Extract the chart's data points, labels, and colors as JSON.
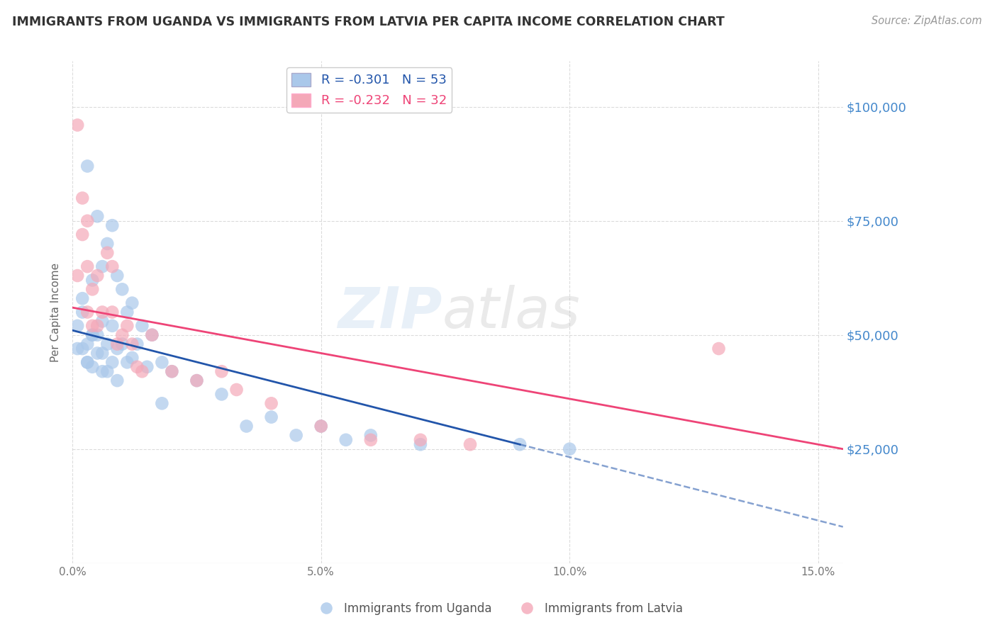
{
  "title": "IMMIGRANTS FROM UGANDA VS IMMIGRANTS FROM LATVIA PER CAPITA INCOME CORRELATION CHART",
  "source": "Source: ZipAtlas.com",
  "ylabel": "Per Capita Income",
  "ytick_labels": [
    "$25,000",
    "$50,000",
    "$75,000",
    "$100,000"
  ],
  "ytick_values": [
    25000,
    50000,
    75000,
    100000
  ],
  "ylim": [
    0,
    110000
  ],
  "xlim": [
    0.0,
    0.155
  ],
  "xtick_values": [
    0.0,
    0.05,
    0.1,
    0.15
  ],
  "xtick_labels": [
    "0.0%",
    "5.0%",
    "10.0%",
    "15.0%"
  ],
  "legend_labels_bottom": [
    "Immigrants from Uganda",
    "Immigrants from Latvia"
  ],
  "uganda_color": "#aac8ea",
  "latvia_color": "#f4a8b8",
  "uganda_line_color": "#2255aa",
  "latvia_line_color": "#ee4477",
  "watermark_zip": "ZIP",
  "watermark_atlas": "atlas",
  "bg_color": "#ffffff",
  "grid_color": "#cccccc",
  "title_color": "#333333",
  "axis_label_color": "#666666",
  "right_label_color": "#4488cc",
  "uganda_R": -0.301,
  "uganda_N": 53,
  "latvia_R": -0.232,
  "latvia_N": 32,
  "uganda_points_x": [
    0.001,
    0.003,
    0.001,
    0.005,
    0.002,
    0.008,
    0.004,
    0.006,
    0.003,
    0.009,
    0.002,
    0.007,
    0.004,
    0.01,
    0.006,
    0.003,
    0.005,
    0.008,
    0.002,
    0.011,
    0.007,
    0.004,
    0.012,
    0.009,
    0.006,
    0.014,
    0.003,
    0.01,
    0.005,
    0.016,
    0.008,
    0.013,
    0.011,
    0.007,
    0.018,
    0.004,
    0.015,
    0.009,
    0.006,
    0.02,
    0.012,
    0.025,
    0.03,
    0.018,
    0.04,
    0.035,
    0.05,
    0.045,
    0.06,
    0.055,
    0.07,
    0.09,
    0.1
  ],
  "uganda_points_y": [
    47000,
    87000,
    52000,
    76000,
    58000,
    74000,
    62000,
    65000,
    48000,
    63000,
    55000,
    70000,
    50000,
    60000,
    53000,
    44000,
    50000,
    52000,
    47000,
    55000,
    48000,
    50000,
    57000,
    47000,
    46000,
    52000,
    44000,
    48000,
    46000,
    50000,
    44000,
    48000,
    44000,
    42000,
    44000,
    43000,
    43000,
    40000,
    42000,
    42000,
    45000,
    40000,
    37000,
    35000,
    32000,
    30000,
    30000,
    28000,
    28000,
    27000,
    26000,
    26000,
    25000
  ],
  "latvia_points_x": [
    0.001,
    0.001,
    0.002,
    0.002,
    0.003,
    0.003,
    0.004,
    0.004,
    0.005,
    0.005,
    0.006,
    0.007,
    0.008,
    0.008,
    0.009,
    0.01,
    0.011,
    0.012,
    0.013,
    0.014,
    0.016,
    0.02,
    0.025,
    0.03,
    0.033,
    0.04,
    0.05,
    0.06,
    0.07,
    0.08,
    0.13,
    0.003
  ],
  "latvia_points_y": [
    96000,
    63000,
    80000,
    72000,
    55000,
    65000,
    52000,
    60000,
    63000,
    52000,
    55000,
    68000,
    55000,
    65000,
    48000,
    50000,
    52000,
    48000,
    43000,
    42000,
    50000,
    42000,
    40000,
    42000,
    38000,
    35000,
    30000,
    27000,
    27000,
    26000,
    47000,
    75000
  ]
}
